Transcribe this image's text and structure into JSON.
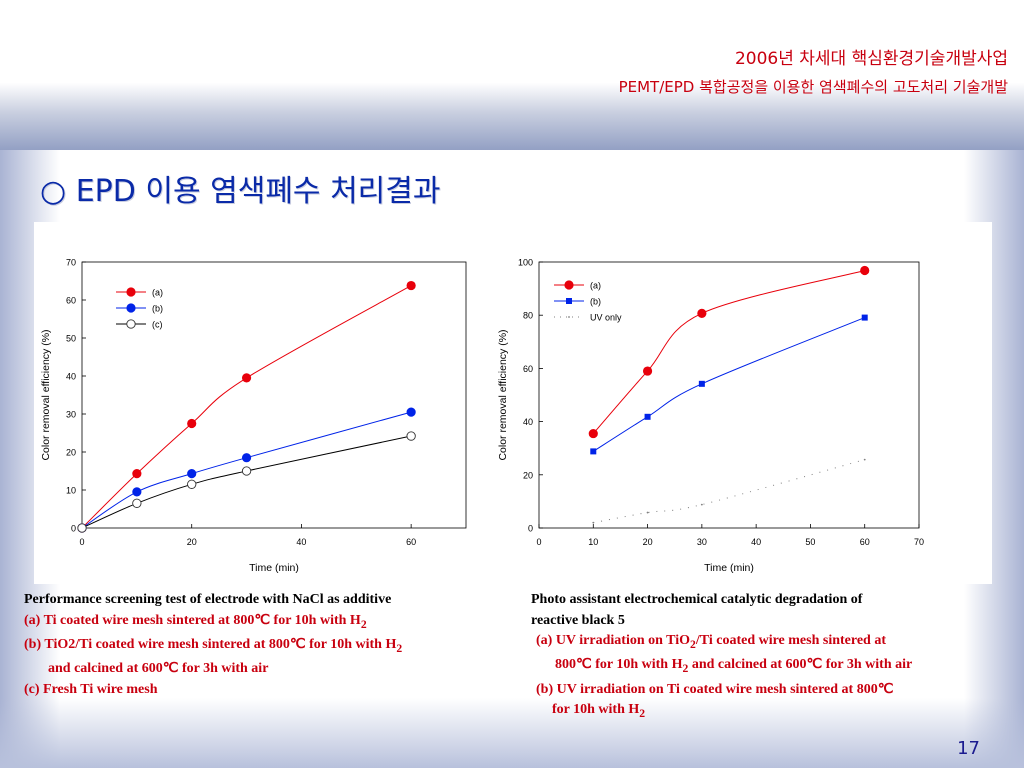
{
  "header": {
    "line1": "2006년 차세대 핵심환경기술개발사업",
    "line2": "PEMT/EPD 복합공정을 이용한 염색폐수의 고도처리 기술개발"
  },
  "slide": {
    "title": "○ EPD 이용 염색폐수 처리결과",
    "page_number": "17"
  },
  "chart_data": [
    {
      "type": "line",
      "xlabel": "Time (min)",
      "ylabel": "Color removal efficiency (%)",
      "xlim": [
        0,
        70
      ],
      "ylim": [
        0,
        70
      ],
      "xticks": [
        0,
        20,
        40,
        60
      ],
      "yticks": [
        0,
        10,
        20,
        30,
        40,
        50,
        60,
        70
      ],
      "legend_position": "top-left",
      "grid": false,
      "series": [
        {
          "name": "(a)",
          "color": "#e8000b",
          "marker": "filled-circle",
          "line": "solid",
          "x": [
            0,
            10,
            20,
            30,
            60
          ],
          "y": [
            0,
            14.3,
            27.5,
            39.5,
            63.8
          ]
        },
        {
          "name": "(b)",
          "color": "#0023e8",
          "marker": "filled-circle",
          "line": "solid",
          "x": [
            0,
            10,
            20,
            30,
            60
          ],
          "y": [
            0,
            9.5,
            14.3,
            18.5,
            30.5
          ]
        },
        {
          "name": "(c)",
          "color": "#000000",
          "marker": "open-circle",
          "line": "solid",
          "x": [
            0,
            10,
            20,
            30,
            60
          ],
          "y": [
            0,
            6.5,
            11.5,
            15,
            24.2
          ]
        }
      ]
    },
    {
      "type": "line",
      "xlabel": "Time (min)",
      "ylabel": "Color removal efficiency (%)",
      "xlim": [
        0,
        70
      ],
      "ylim": [
        0,
        100
      ],
      "xticks": [
        0,
        10,
        20,
        30,
        40,
        50,
        60,
        70
      ],
      "yticks": [
        0,
        20,
        40,
        60,
        80,
        100
      ],
      "legend_position": "top-left",
      "grid": false,
      "series": [
        {
          "name": "(a)",
          "color": "#e8000b",
          "marker": "filled-circle",
          "line": "solid",
          "x": [
            10,
            20,
            30,
            60
          ],
          "y": [
            35.5,
            59,
            80.7,
            96.8
          ]
        },
        {
          "name": "(b)",
          "color": "#0023e8",
          "marker": "filled-square",
          "line": "solid",
          "x": [
            10,
            20,
            30,
            60
          ],
          "y": [
            28.8,
            41.8,
            54.2,
            79.1
          ]
        },
        {
          "name": "UV only",
          "color": "#808080",
          "marker": "dot",
          "line": "dotted",
          "x": [
            10,
            20,
            30,
            60
          ],
          "y": [
            2,
            5.8,
            8.8,
            25.7
          ]
        }
      ]
    }
  ],
  "captions": {
    "left": {
      "title": "Performance screening test of electrode with NaCl as additive",
      "a": "(a) Ti coated wire mesh sintered at 800℃ for 10h with H",
      "a_sub": "2",
      "b1": "(b) TiO2/Ti coated wire mesh sintered at  800℃ for 10h with H",
      "b1_sub": "2",
      "b2": "and calcined at 600℃ for 3h with air",
      "c": "(c) Fresh Ti wire mesh"
    },
    "right": {
      "title1": "Photo assistant electrochemical catalytic degradation of",
      "title2": "reactive black 5",
      "a1_pre": "(a) UV irradiation on TiO",
      "a1_sub": "2",
      "a1_post": "/Ti coated wire  mesh sintered at",
      "a2_pre": "800℃ for 10h with H",
      "a2_sub": "2",
      "a2_post": " and calcined at 600℃ for 3h with air",
      "b1": "(b) UV irradiation on Ti coated wire mesh  sintered at 800℃",
      "b2_pre": "for 10h with H",
      "b2_sub": "2"
    }
  }
}
